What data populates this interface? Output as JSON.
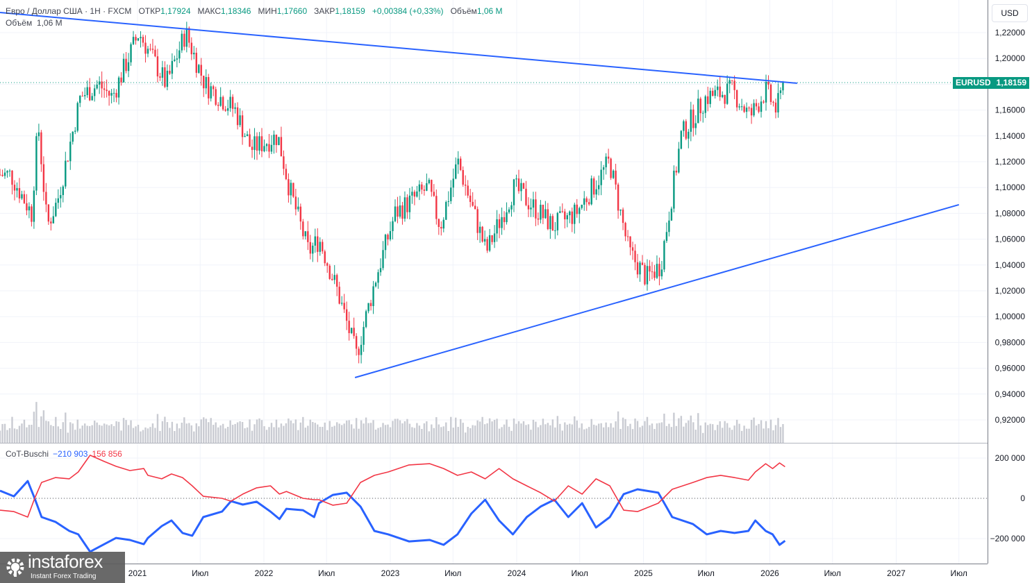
{
  "header": {
    "symbol": "Евро / Доллар США · 1Н · FXCM",
    "open_label": "ОТКР",
    "open": "1,17924",
    "high_label": "МАКС",
    "high": "1,18346",
    "low_label": "МИН",
    "low": "1,17660",
    "close_label": "ЗАКР",
    "close": "1,18159",
    "change": "+0,00384 (+0,33%)",
    "volume_label": "Объём",
    "volume": "1,06 M"
  },
  "volume_legend": {
    "label": "Объём",
    "value": "1,06 M"
  },
  "currency": "USD",
  "last_price": {
    "symbol": "EURUSD",
    "value": "1,18159"
  },
  "indicator": {
    "name": "CoT-Buschi",
    "blue_value": "−210 903",
    "red_value": "156 856"
  },
  "logo": {
    "name": "instaforex",
    "tagline": "Instant Forex Trading"
  },
  "colors": {
    "up": "#089981",
    "down": "#f23645",
    "trendline": "#2962ff",
    "cot_blue": "#2962ff",
    "cot_red": "#f23645",
    "volume": "#c9cbd2"
  },
  "chart_data": {
    "type": "candlestick",
    "symbol": "EURUSD",
    "price_axis": {
      "ticks": [
        "1,22000",
        "1,20000",
        "1,18000",
        "1,16000",
        "1,14000",
        "1,12000",
        "1,10000",
        "1,08000",
        "1,06000",
        "1,04000",
        "1,02000",
        "1,00000",
        "0,98000",
        "0,96000",
        "0,94000",
        "0,92000"
      ],
      "ylim": [
        0.92,
        1.22
      ],
      "visible_labels_skip": [
        "1,18000"
      ]
    },
    "time_axis": {
      "ticks": [
        {
          "label": "2021",
          "date": "2021-01-01"
        },
        {
          "label": "Июл",
          "date": "2021-07-01"
        },
        {
          "label": "2022",
          "date": "2022-01-01"
        },
        {
          "label": "Июл",
          "date": "2022-07-01"
        },
        {
          "label": "2023",
          "date": "2023-01-01"
        },
        {
          "label": "Июл",
          "date": "2023-07-01"
        },
        {
          "label": "2024",
          "date": "2024-01-01"
        },
        {
          "label": "Июл",
          "date": "2024-07-01"
        },
        {
          "label": "2025",
          "date": "2025-01-01"
        },
        {
          "label": "Июл",
          "date": "2025-07-01"
        },
        {
          "label": "2026",
          "date": "2026-01-01"
        },
        {
          "label": "Июл",
          "date": "2026-07-01"
        },
        {
          "label": "2027",
          "date": "2027-01-01"
        },
        {
          "label": "Июл",
          "date": "2027-07-01"
        }
      ]
    },
    "price_path": [
      [
        "2020-01-01",
        1.11
      ],
      [
        "2020-03-01",
        1.08
      ],
      [
        "2020-03-20",
        1.15
      ],
      [
        "2020-04-15",
        1.07
      ],
      [
        "2020-05-15",
        1.09
      ],
      [
        "2020-07-20",
        1.17
      ],
      [
        "2020-09-10",
        1.18
      ],
      [
        "2020-10-20",
        1.17
      ],
      [
        "2021-01-05",
        1.22
      ],
      [
        "2021-03-25",
        1.18
      ],
      [
        "2021-05-20",
        1.22
      ],
      [
        "2021-07-15",
        1.18
      ],
      [
        "2021-10-10",
        1.16
      ],
      [
        "2021-11-25",
        1.13
      ],
      [
        "2022-02-10",
        1.14
      ],
      [
        "2022-03-15",
        1.1
      ],
      [
        "2022-05-10",
        1.05
      ],
      [
        "2022-06-10",
        1.06
      ],
      [
        "2022-08-01",
        1.02
      ],
      [
        "2022-09-25",
        0.97
      ],
      [
        "2022-11-20",
        1.03
      ],
      [
        "2023-01-15",
        1.08
      ],
      [
        "2023-04-20",
        1.1
      ],
      [
        "2023-05-25",
        1.07
      ],
      [
        "2023-07-15",
        1.12
      ],
      [
        "2023-10-05",
        1.05
      ],
      [
        "2023-12-25",
        1.1
      ],
      [
        "2024-04-15",
        1.07
      ],
      [
        "2024-06-20",
        1.08
      ],
      [
        "2024-09-25",
        1.12
      ],
      [
        "2024-11-20",
        1.05
      ],
      [
        "2025-01-10",
        1.03
      ],
      [
        "2025-02-20",
        1.04
      ],
      [
        "2025-04-20",
        1.14
      ],
      [
        "2025-07-01",
        1.17
      ],
      [
        "2025-09-15",
        1.175
      ],
      [
        "2025-11-05",
        1.155
      ],
      [
        "2025-12-20",
        1.175
      ],
      [
        "2026-01-20",
        1.16
      ],
      [
        "2026-02-14",
        1.1816
      ]
    ],
    "last_close": 1.18159,
    "trendlines": [
      {
        "from": [
          "2019-12-01",
          1.2356
        ],
        "to": [
          "2026-03-21",
          1.1808
        ]
      },
      {
        "from": [
          "2022-09-21",
          0.9528
        ],
        "to": [
          "2027-07-01",
          1.0867
        ]
      }
    ],
    "cot": {
      "ylim": [
        -300000,
        250000
      ],
      "ticks": [
        "200 000",
        "0",
        "−200 000"
      ],
      "tick_values": [
        200000,
        0,
        -200000
      ],
      "dates": [
        "2019-12-01",
        "2020-01-10",
        "2020-02-19",
        "2020-03-10",
        "2020-03-30",
        "2020-05-09",
        "2020-06-18",
        "2020-07-14",
        "2020-08-17",
        "2020-09-27",
        "2020-10-31",
        "2020-12-10",
        "2021-01-19",
        "2021-01-31",
        "2021-03-12",
        "2021-04-09",
        "2021-05-11",
        "2021-06-08",
        "2021-07-10",
        "2021-09-02",
        "2021-09-28",
        "2021-11-01",
        "2021-12-11",
        "2022-01-20",
        "2022-02-15",
        "2022-03-07",
        "2022-04-24",
        "2022-05-26",
        "2022-06-09",
        "2022-07-19",
        "2022-08-28",
        "2022-10-07",
        "2022-11-16",
        "2022-12-26",
        "2023-02-24",
        "2023-04-25",
        "2023-06-04",
        "2023-07-14",
        "2023-08-23",
        "2023-10-02",
        "2023-11-11",
        "2023-12-21",
        "2024-01-30",
        "2024-03-10",
        "2024-04-19",
        "2024-05-29",
        "2024-07-08",
        "2024-08-17",
        "2024-09-26",
        "2024-11-05",
        "2024-12-15",
        "2025-02-13",
        "2025-03-25",
        "2025-05-24",
        "2025-07-03",
        "2025-08-12",
        "2025-09-21",
        "2025-10-31",
        "2025-11-20",
        "2025-12-20",
        "2026-01-09",
        "2026-01-29",
        "2026-02-14"
      ],
      "series": [
        {
          "color": "#2962ff",
          "values": [
            38000,
            10000,
            86000,
            0,
            -93000,
            -117000,
            -162000,
            -179000,
            -265000,
            -228000,
            -197000,
            -207000,
            -228000,
            -197000,
            -138000,
            -110000,
            -172000,
            -186000,
            -93000,
            -66000,
            -14000,
            -31000,
            -17000,
            -66000,
            -103000,
            -52000,
            -59000,
            -93000,
            -24000,
            17000,
            28000,
            -41000,
            -162000,
            -179000,
            -214000,
            -207000,
            -231000,
            -179000,
            -76000,
            -7000,
            -110000,
            -179000,
            -93000,
            -41000,
            -7000,
            -93000,
            -24000,
            -145000,
            -93000,
            21000,
            45000,
            28000,
            -93000,
            -128000,
            -179000,
            -162000,
            -172000,
            -162000,
            -110000,
            -162000,
            -179000,
            -231000,
            -210903
          ]
        },
        {
          "color": "#f23645",
          "values": [
            -59000,
            -66000,
            -93000,
            0,
            79000,
            103000,
            97000,
            131000,
            214000,
            183000,
            159000,
            138000,
            148000,
            114000,
            97000,
            121000,
            103000,
            62000,
            10000,
            0,
            -14000,
            21000,
            52000,
            62000,
            21000,
            34000,
            0,
            -7000,
            -7000,
            -34000,
            -24000,
            79000,
            114000,
            131000,
            166000,
            172000,
            148000,
            114000,
            131000,
            97000,
            148000,
            97000,
            62000,
            28000,
            -14000,
            62000,
            21000,
            97000,
            62000,
            -59000,
            -66000,
            -24000,
            45000,
            79000,
            103000,
            114000,
            103000,
            90000,
            131000,
            172000,
            148000,
            176000,
            156856
          ]
        }
      ]
    }
  }
}
